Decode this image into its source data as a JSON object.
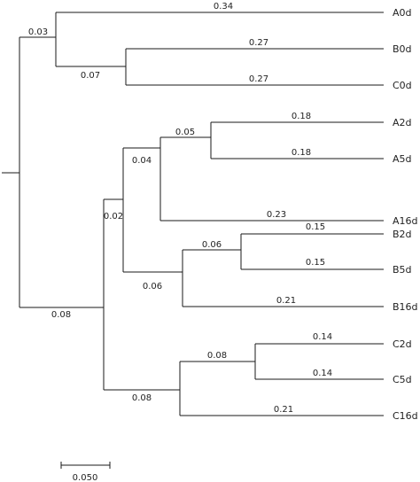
{
  "tree": {
    "leaves": [
      "A0d",
      "B0d",
      "C0d",
      "A2d",
      "A5d",
      "A16d",
      "B2d",
      "B5d",
      "B16d",
      "C2d",
      "C5d",
      "C16d"
    ],
    "branch_labels": {
      "a0": "0.34",
      "b0": "0.27",
      "c0": "0.27",
      "a2": "0.18",
      "a5": "0.18",
      "a16": "0.23",
      "b2": "0.15",
      "b5": "0.15",
      "b16": "0.21",
      "c2": "0.14",
      "c5": "0.14",
      "c16": "0.21",
      "n_abc0": "0.03",
      "n_bc0": "0.07",
      "n_a25": "0.05",
      "n_a": "0.04",
      "n_ab": "0.02",
      "n_b25": "0.06",
      "n_b": "0.06",
      "n_rest": "0.08",
      "n_c25": "0.08",
      "n_c": "0.08"
    }
  },
  "scale": {
    "label": "0.050"
  }
}
